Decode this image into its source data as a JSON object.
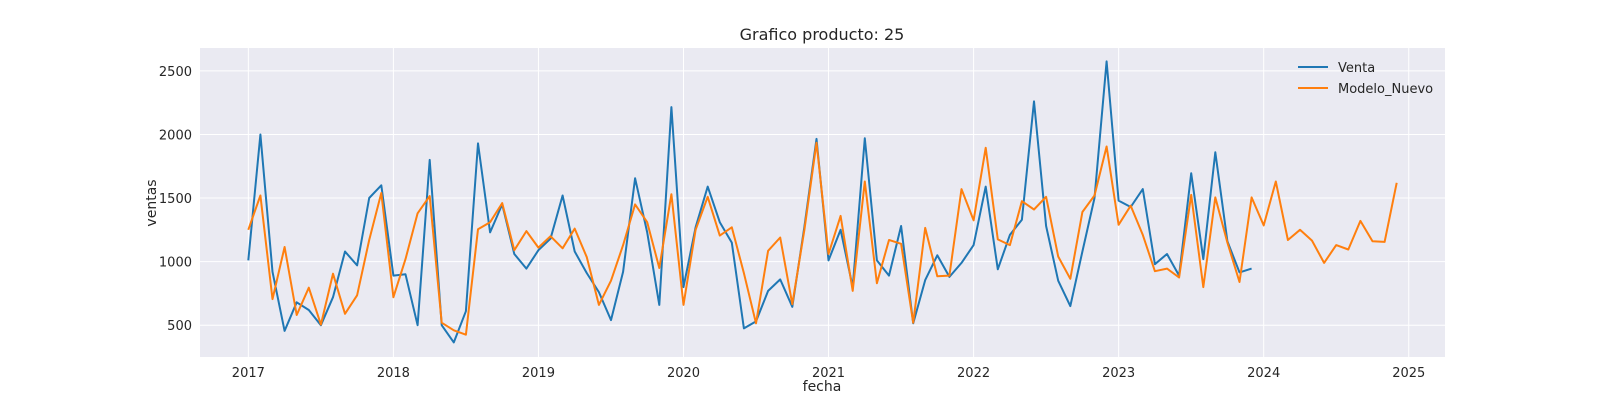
{
  "chart_data": {
    "type": "line",
    "title": "Grafico producto: 25",
    "xlabel": "fecha",
    "ylabel": "ventas",
    "x_axis": "monthly dates",
    "xlim": [
      "2016-09",
      "2025-04"
    ],
    "ylim": [
      250,
      2680
    ],
    "x_ticks": [
      "2017",
      "2018",
      "2019",
      "2020",
      "2021",
      "2022",
      "2023",
      "2024",
      "2025"
    ],
    "y_ticks": [
      500,
      1000,
      1500,
      2000,
      2500
    ],
    "grid": true,
    "legend_position": "top-right",
    "background_color": "#eaeaf2",
    "series": [
      {
        "name": "Venta",
        "color": "#1f77b4",
        "start": "2017-01",
        "values": [
          1010,
          2000,
          920,
          455,
          680,
          620,
          500,
          720,
          1080,
          970,
          1500,
          1600,
          890,
          900,
          500,
          1800,
          500,
          365,
          610,
          1930,
          1230,
          1450,
          1060,
          945,
          1090,
          1180,
          1520,
          1080,
          910,
          760,
          540,
          920,
          1655,
          1230,
          660,
          2215,
          800,
          1270,
          1590,
          1310,
          1150,
          475,
          530,
          770,
          860,
          645,
          1275,
          1965,
          1010,
          1250,
          800,
          1970,
          1010,
          890,
          1280,
          515,
          855,
          1050,
          880,
          990,
          1130,
          1590,
          940,
          1210,
          1330,
          2260,
          1280,
          850,
          650,
          1080,
          1500,
          2575,
          1480,
          1430,
          1570,
          980,
          1060,
          890,
          1695,
          1020,
          1860,
          1160,
          915,
          945
        ]
      },
      {
        "name": "Modelo_Nuevo",
        "color": "#ff7f0e",
        "start": "2017-01",
        "values": [
          1250,
          1520,
          705,
          1115,
          580,
          795,
          505,
          905,
          590,
          735,
          1170,
          1540,
          720,
          1020,
          1380,
          1515,
          520,
          460,
          425,
          1255,
          1310,
          1460,
          1090,
          1240,
          1110,
          1200,
          1105,
          1260,
          1035,
          660,
          850,
          1130,
          1450,
          1310,
          950,
          1530,
          660,
          1250,
          1510,
          1205,
          1270,
          910,
          515,
          1085,
          1190,
          665,
          1250,
          1935,
          1060,
          1360,
          770,
          1630,
          830,
          1170,
          1140,
          520,
          1265,
          885,
          890,
          1570,
          1325,
          1895,
          1175,
          1130,
          1475,
          1410,
          1510,
          1040,
          865,
          1390,
          1520,
          1905,
          1290,
          1440,
          1210,
          925,
          945,
          875,
          1525,
          800,
          1505,
          1150,
          840,
          1505,
          1285,
          1630,
          1170,
          1250,
          1165,
          990,
          1130,
          1095,
          1320,
          1160,
          1155,
          1620
        ]
      }
    ]
  }
}
